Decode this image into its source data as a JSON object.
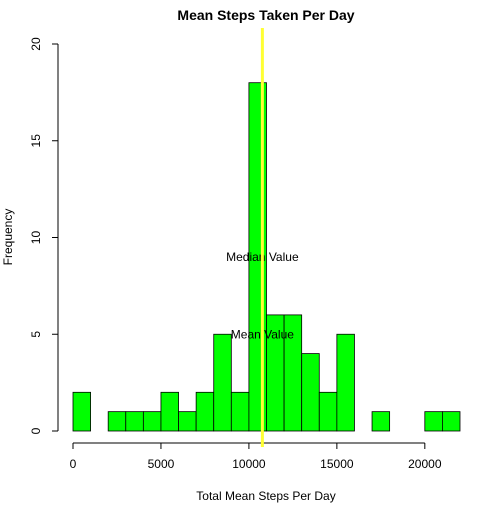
{
  "chart_data": {
    "type": "bar",
    "title": "Mean Steps Taken Per Day",
    "xlabel": "Total Mean Steps Per Day",
    "ylabel": "Frequency",
    "bin_width": 1000,
    "bins": [
      {
        "start": 0,
        "end": 1000,
        "count": 2
      },
      {
        "start": 1000,
        "end": 2000,
        "count": 0
      },
      {
        "start": 2000,
        "end": 3000,
        "count": 1
      },
      {
        "start": 3000,
        "end": 4000,
        "count": 1
      },
      {
        "start": 4000,
        "end": 5000,
        "count": 1
      },
      {
        "start": 5000,
        "end": 6000,
        "count": 2
      },
      {
        "start": 6000,
        "end": 7000,
        "count": 1
      },
      {
        "start": 7000,
        "end": 8000,
        "count": 2
      },
      {
        "start": 8000,
        "end": 9000,
        "count": 5
      },
      {
        "start": 9000,
        "end": 10000,
        "count": 2
      },
      {
        "start": 10000,
        "end": 11000,
        "count": 18
      },
      {
        "start": 11000,
        "end": 12000,
        "count": 6
      },
      {
        "start": 12000,
        "end": 13000,
        "count": 6
      },
      {
        "start": 13000,
        "end": 14000,
        "count": 4
      },
      {
        "start": 14000,
        "end": 15000,
        "count": 2
      },
      {
        "start": 15000,
        "end": 16000,
        "count": 5
      },
      {
        "start": 16000,
        "end": 17000,
        "count": 0
      },
      {
        "start": 17000,
        "end": 18000,
        "count": 1
      },
      {
        "start": 18000,
        "end": 19000,
        "count": 0
      },
      {
        "start": 19000,
        "end": 20000,
        "count": 0
      },
      {
        "start": 20000,
        "end": 21000,
        "count": 1
      },
      {
        "start": 21000,
        "end": 22000,
        "count": 1
      }
    ],
    "xlim": [
      0,
      22000
    ],
    "ylim": [
      0,
      20
    ],
    "x_ticks": [
      0,
      5000,
      10000,
      15000,
      20000
    ],
    "y_ticks": [
      0,
      5,
      10,
      15,
      20
    ],
    "bar_color": "#00ff00",
    "bar_border_color": "#000000",
    "vline": {
      "x": 10766,
      "color": "#ffff33"
    },
    "annotations": [
      {
        "text": "Median Value",
        "x": 10766,
        "y": 9
      },
      {
        "text": "Mean Value",
        "x": 10766,
        "y": 5
      }
    ],
    "grid": false,
    "legend": "none"
  }
}
